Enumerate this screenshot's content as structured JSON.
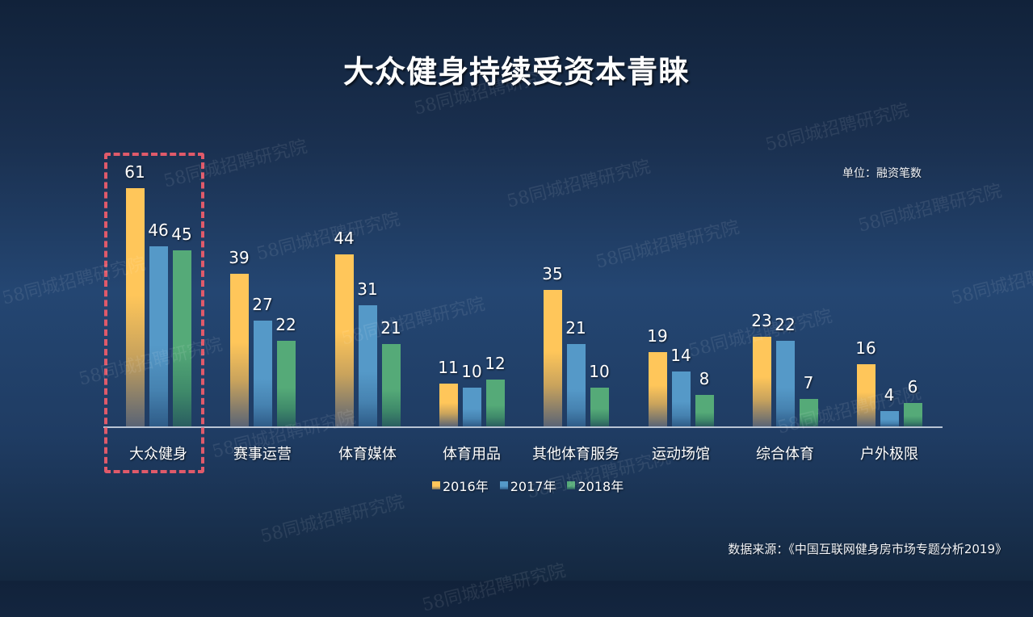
{
  "slide": {
    "title": "大众健身持续受资本青睐",
    "unit_label": "单位：融资笔数",
    "source": "数据来源：《中国互联网健身房市场专题分析2019》",
    "watermark_text": "58同城招聘研究院",
    "highlighted_category": "大众健身"
  },
  "colors": {
    "series_2016": "#ffc65a",
    "series_2017": "#5599c8",
    "series_2018": "#55aa78",
    "highlight_border": "#e05a6a",
    "background_top": "#11223a",
    "background_mid": "#244672"
  },
  "legend": [
    {
      "label": "2016年",
      "color": "#ffc65a"
    },
    {
      "label": "2017年",
      "color": "#5599c8"
    },
    {
      "label": "2018年",
      "color": "#55aa78"
    }
  ],
  "chart_data": {
    "type": "bar",
    "title": "大众健身持续受资本青睐",
    "xlabel": "",
    "ylabel": "融资笔数",
    "unit": "单位：融资笔数",
    "categories": [
      "大众健身",
      "赛事运营",
      "体育媒体",
      "体育用品",
      "其他体育服务",
      "运动场馆",
      "综合体育",
      "户外极限"
    ],
    "series": [
      {
        "name": "2016年",
        "values": [
          61,
          39,
          44,
          11,
          35,
          19,
          23,
          16
        ]
      },
      {
        "name": "2017年",
        "values": [
          46,
          27,
          31,
          10,
          21,
          14,
          22,
          4
        ]
      },
      {
        "name": "2018年",
        "values": [
          45,
          22,
          21,
          12,
          10,
          8,
          7,
          6
        ]
      }
    ],
    "ylim": [
      0,
      65
    ],
    "grid": false,
    "y_axis_visible": false,
    "data_labels": true,
    "legend_position": "bottom",
    "annotations": [
      "红色虚线框突出显示 大众健身"
    ]
  }
}
